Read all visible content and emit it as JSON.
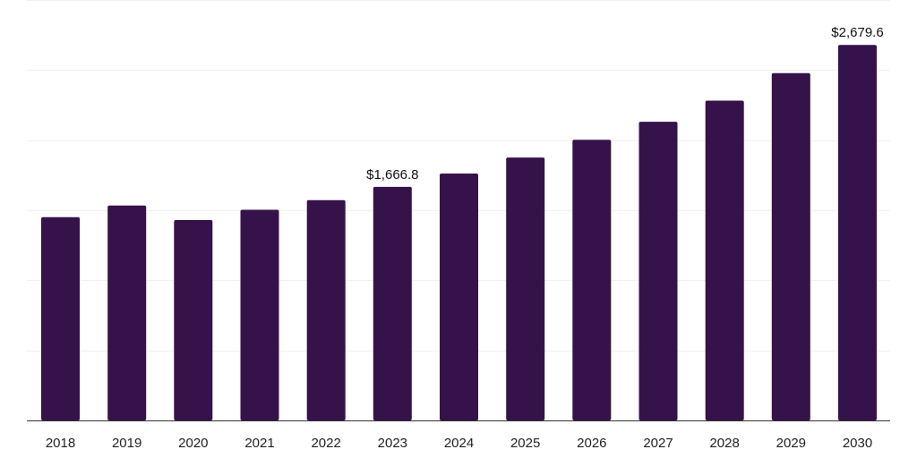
{
  "chart_data": {
    "type": "bar",
    "title": "",
    "xlabel": "",
    "ylabel": "",
    "categories": [
      "2018",
      "2019",
      "2020",
      "2021",
      "2022",
      "2023",
      "2024",
      "2025",
      "2026",
      "2027",
      "2028",
      "2029",
      "2030"
    ],
    "values": [
      1450,
      1534,
      1430,
      1503,
      1572,
      1666.8,
      1762,
      1876,
      2003,
      2131,
      2282,
      2478,
      2679.6
    ],
    "data_labels": [
      {
        "category": "2023",
        "text": "$1,666.8"
      },
      {
        "category": "2030",
        "text": "$2,679.6"
      }
    ],
    "ylim": [
      0,
      3000
    ],
    "grid": true,
    "legend": "none",
    "bar_color": "#36124a",
    "grid_color": "#f1f1f1",
    "axis_color": "#333333"
  }
}
